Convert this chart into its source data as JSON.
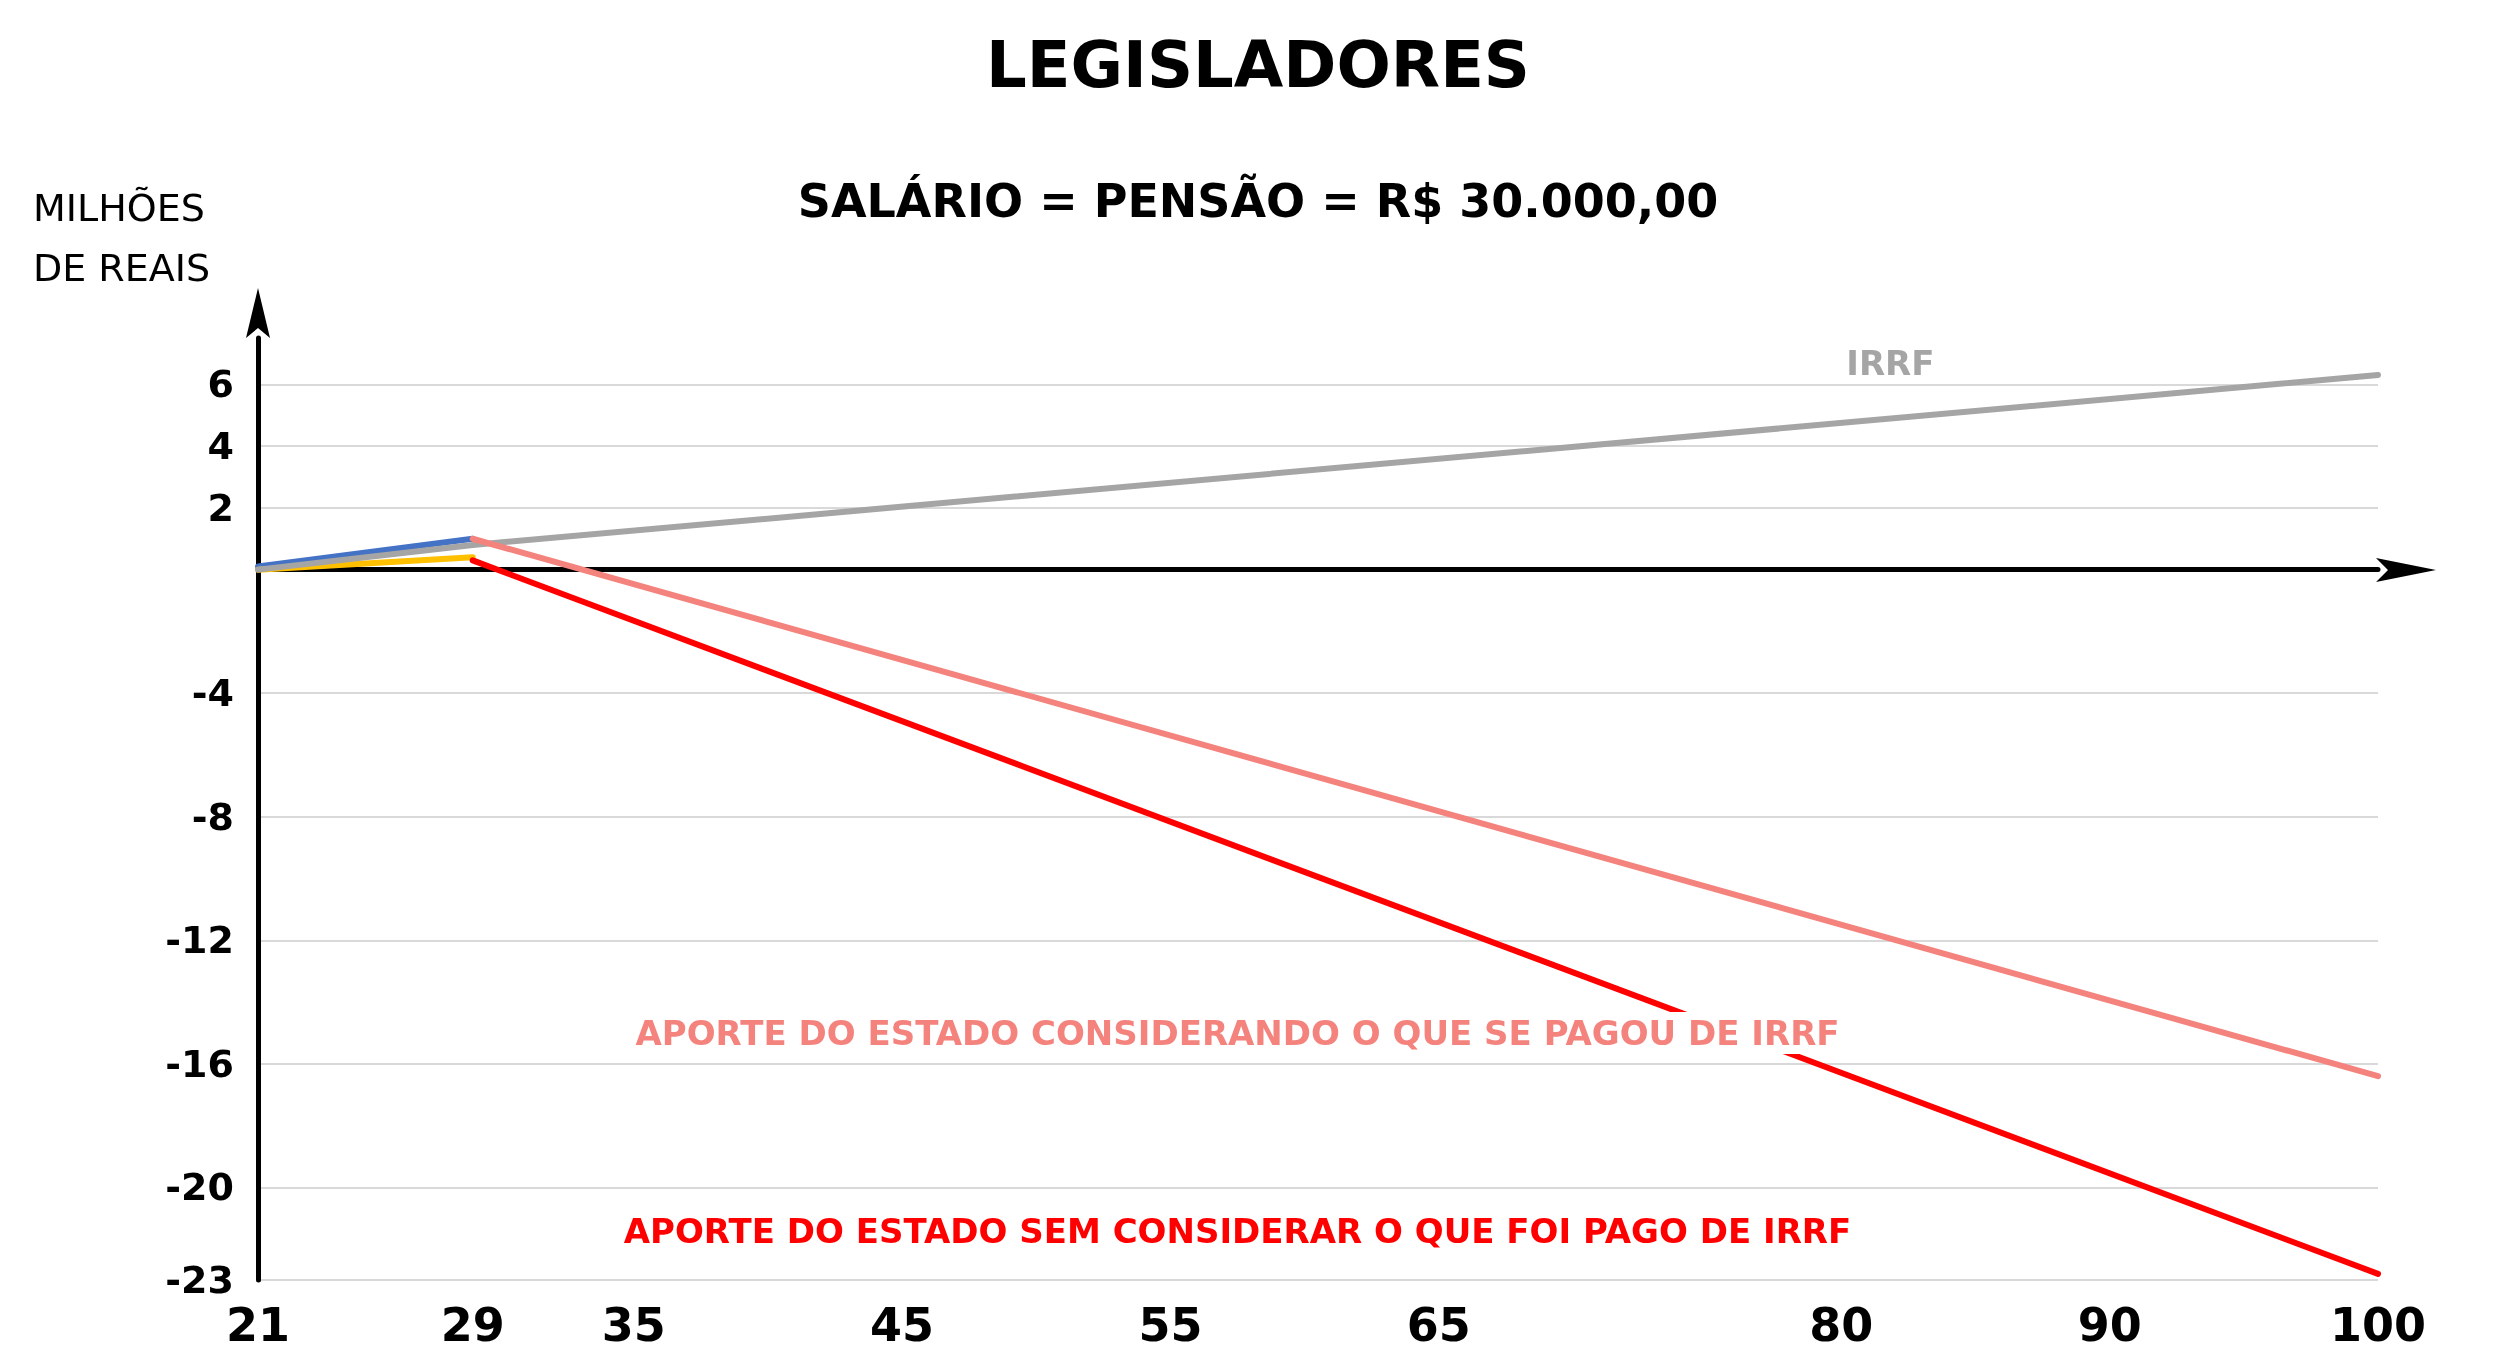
{
  "chart_data": {
    "type": "line",
    "title": "LEGISLADORES",
    "subtitle": "SALÁRIO = PENSÃO = R$ 30.000,00",
    "ylabel": "MILHÕES\nDE REAIS",
    "xlim": [
      21,
      100
    ],
    "xticks": [
      21,
      29,
      35,
      45,
      55,
      65,
      80,
      90,
      100
    ],
    "ylim": [
      -23,
      7.5
    ],
    "yticks": [
      -23,
      -20,
      -16,
      -12,
      -8,
      -4,
      2,
      4,
      6
    ],
    "grid": "y",
    "marker": "none",
    "line_style": "solid",
    "legend": false,
    "series": [
      {
        "color": "#4472c4",
        "x": [
          21,
          29
        ],
        "values": [
          0.1,
          1.0
        ]
      },
      {
        "color": "#ffc000",
        "x": [
          21,
          29
        ],
        "values": [
          0,
          0.4
        ]
      },
      {
        "name": "IRRF",
        "color": "#a5a5a5",
        "x": [
          21,
          29,
          100
        ],
        "values": [
          0,
          0.8,
          6.3
        ]
      },
      {
        "name": "APORTE DO ESTADO CONSIDERANDO O QUE SE PAGOU DE IRRF",
        "color": "#f4837d",
        "x": [
          29,
          100
        ],
        "values": [
          1.0,
          -16.4
        ]
      },
      {
        "name": "APORTE DO ESTADO SEM CONSIDERAR O QUE FOI PAGO DE IRRF",
        "color": "#ff0000",
        "x": [
          29,
          100
        ],
        "values": [
          0.3,
          -22.8
        ]
      }
    ]
  }
}
